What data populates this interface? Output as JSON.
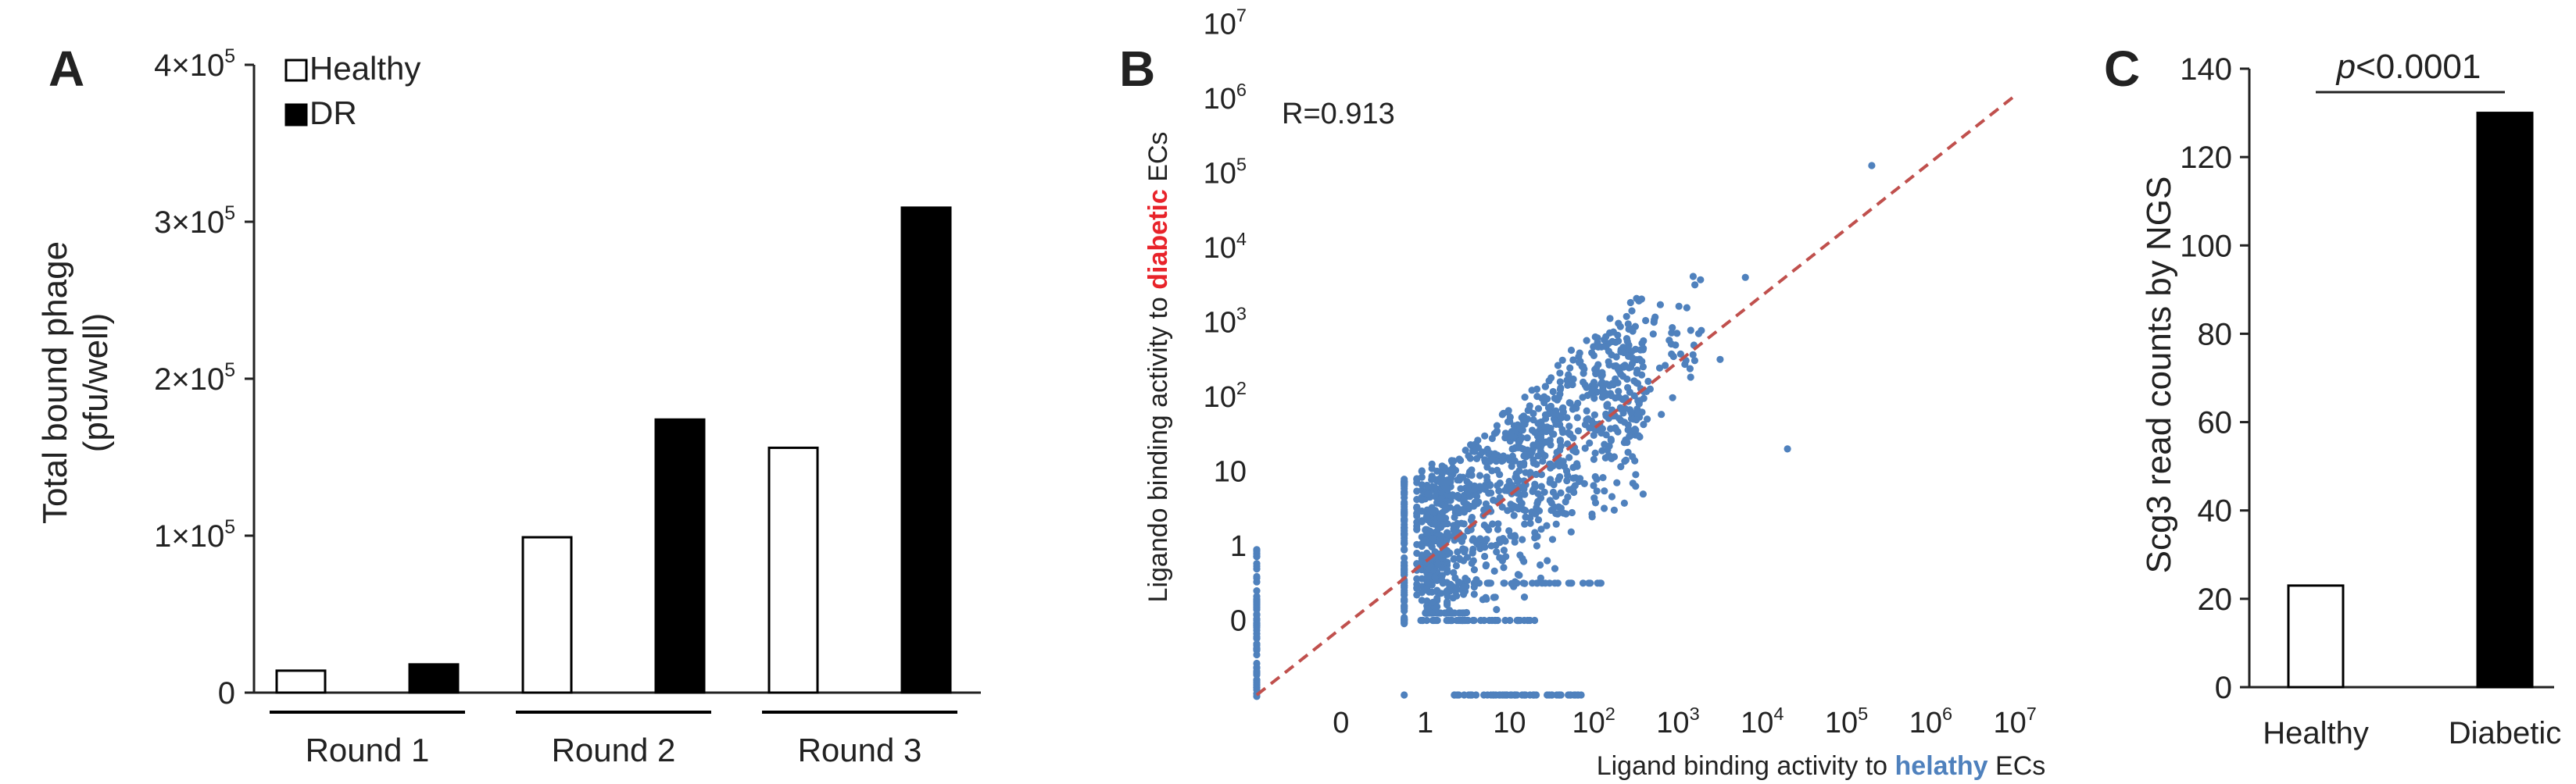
{
  "chart_data": [
    {
      "panel": "A",
      "type": "bar",
      "ylabel_line1": "Total bound phage",
      "ylabel_line2": "(pfu/well)",
      "yticks": [
        {
          "value": 0,
          "mantissa": "0",
          "exp": ""
        },
        {
          "value": 100000,
          "mantissa": "1×10",
          "exp": "5"
        },
        {
          "value": 200000,
          "mantissa": "2×10",
          "exp": "5"
        },
        {
          "value": 300000,
          "mantissa": "3×10",
          "exp": "5"
        },
        {
          "value": 400000,
          "mantissa": "4×10",
          "exp": "5"
        }
      ],
      "ylim": [
        0,
        400000
      ],
      "categories": [
        "Round 1",
        "Round 2",
        "Round 3"
      ],
      "series": [
        {
          "name": "Healthy",
          "color": "#ffffff",
          "values": [
            14000,
            99000,
            156000
          ]
        },
        {
          "name": "DR",
          "color": "#000000",
          "values": [
            18000,
            174000,
            309000
          ]
        }
      ]
    },
    {
      "panel": "B",
      "type": "scatter",
      "annotation": "R=0.913",
      "xlabel_parts": [
        "Ligand binding activity to ",
        "helathy",
        " ECs"
      ],
      "ylabel_parts": [
        "Ligando binding activity to ",
        "diabetic",
        " ECs"
      ],
      "xticks": [
        {
          "value": 0,
          "mantissa": "0",
          "exp": ""
        },
        {
          "value": 1,
          "mantissa": "1",
          "exp": ""
        },
        {
          "value": 10,
          "mantissa": "10",
          "exp": ""
        },
        {
          "value": 100,
          "mantissa": "10",
          "exp": "2"
        },
        {
          "value": 1000,
          "mantissa": "10",
          "exp": "3"
        },
        {
          "value": 10000,
          "mantissa": "10",
          "exp": "4"
        },
        {
          "value": 100000,
          "mantissa": "10",
          "exp": "5"
        },
        {
          "value": 1000000,
          "mantissa": "10",
          "exp": "6"
        },
        {
          "value": 10000000,
          "mantissa": "10",
          "exp": "7"
        }
      ],
      "yticks": [
        {
          "value": 0,
          "mantissa": "0",
          "exp": ""
        },
        {
          "value": 1,
          "mantissa": "1",
          "exp": ""
        },
        {
          "value": 10,
          "mantissa": "10",
          "exp": ""
        },
        {
          "value": 100,
          "mantissa": "10",
          "exp": "2"
        },
        {
          "value": 1000,
          "mantissa": "10",
          "exp": "3"
        },
        {
          "value": 10000,
          "mantissa": "10",
          "exp": "4"
        },
        {
          "value": 100000,
          "mantissa": "10",
          "exp": "5"
        },
        {
          "value": 1000000,
          "mantissa": "10",
          "exp": "6"
        },
        {
          "value": 10000000,
          "mantissa": "10",
          "exp": "7"
        }
      ],
      "axis_scale": "log (ticks 0,1,10,...,10^7 equally spaced)",
      "point_color": "#4f81bd",
      "diagonal_color": "#c0504d",
      "label_highlight_colors": {
        "diabetic": "#e8232a",
        "helathy": "#4f81bd"
      }
    },
    {
      "panel": "C",
      "type": "bar",
      "title_italic": "p",
      "title_rest": "<0.0001",
      "ylabel": "Scg3 read counts by NGS",
      "yticks": [
        0,
        20,
        40,
        60,
        80,
        100,
        120,
        140
      ],
      "ylim": [
        0,
        140
      ],
      "categories": [
        "Healthy",
        "Diabetic"
      ],
      "values": [
        23,
        130
      ],
      "colors": [
        "#ffffff",
        "#000000"
      ]
    }
  ],
  "panel_labels": {
    "a": "A",
    "b": "B",
    "c": "C"
  }
}
